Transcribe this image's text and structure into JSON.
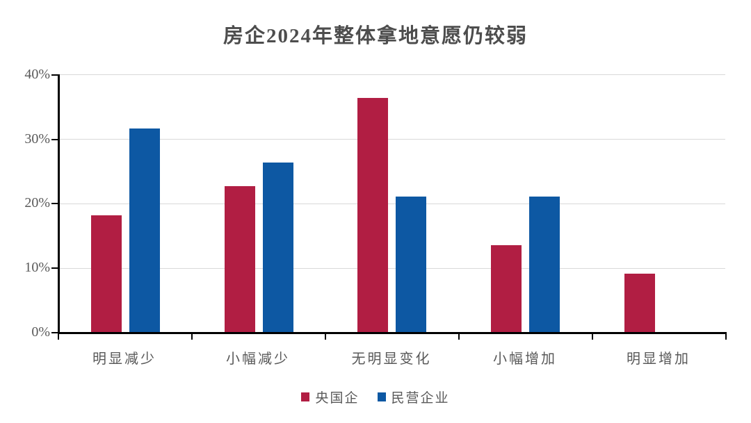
{
  "chart_data": {
    "type": "bar",
    "title": "房企2024年整体拿地意愿仍较弱",
    "categories": [
      "明显减少",
      "小幅减少",
      "无明显变化",
      "小幅增加",
      "明显增加"
    ],
    "series": [
      {
        "name": "央国企",
        "color": "#B11E43",
        "values": [
          18.2,
          22.7,
          36.4,
          13.6,
          9.1
        ]
      },
      {
        "name": "民营企业",
        "color": "#0D58A3",
        "values": [
          31.6,
          26.3,
          21.1,
          21.1,
          0
        ]
      }
    ],
    "xlabel": "",
    "ylabel": "",
    "ylim": [
      0,
      40
    ],
    "ytick_labels": [
      "40%",
      "30%",
      "20%",
      "10%",
      "0%"
    ],
    "grid": "horizontal-only",
    "legend_position": "bottom",
    "colors": {
      "title_text": "#4d4d4d",
      "axis_text": "#595959",
      "axis_line": "#000000",
      "gridline": "#d9d9d9",
      "background": "#ffffff"
    }
  }
}
